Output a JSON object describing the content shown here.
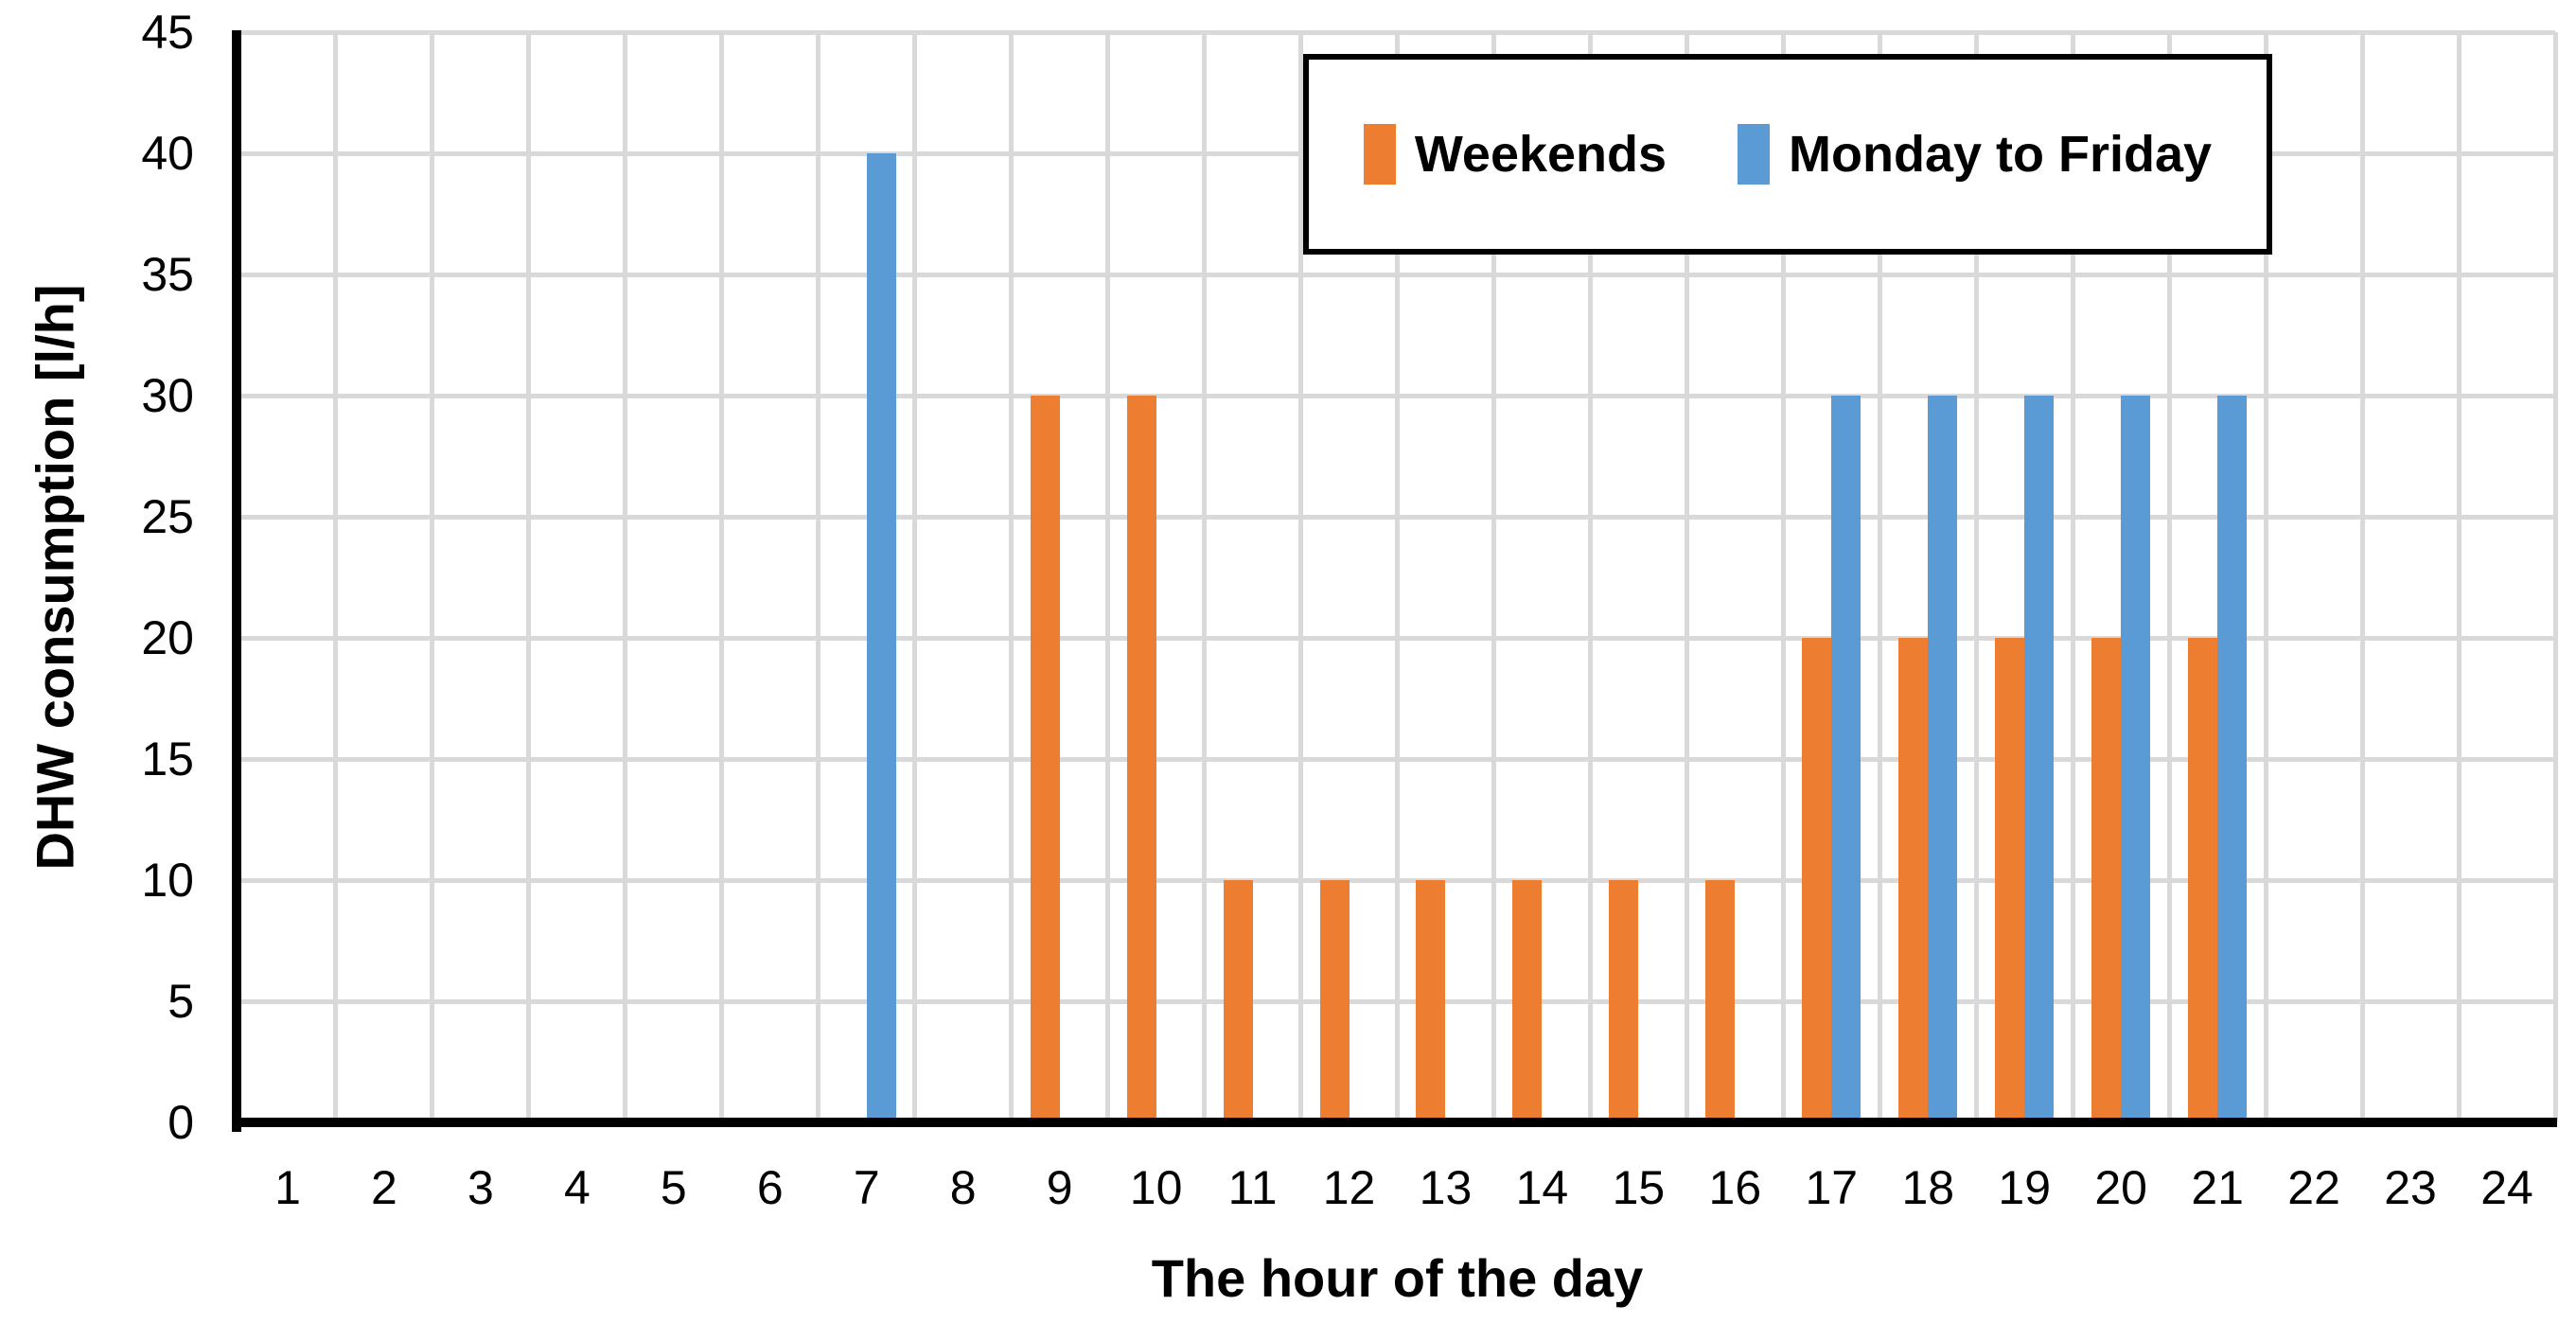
{
  "chart_data": {
    "type": "bar",
    "title": "",
    "xlabel": "The hour of the day",
    "ylabel": "DHW consumption [l/h]",
    "categories": [
      "1",
      "2",
      "3",
      "4",
      "5",
      "6",
      "7",
      "8",
      "9",
      "10",
      "11",
      "12",
      "13",
      "14",
      "15",
      "16",
      "17",
      "18",
      "19",
      "20",
      "21",
      "22",
      "23",
      "24"
    ],
    "series": [
      {
        "name": "Weekends",
        "color": "#ED7D31",
        "values": [
          0,
          0,
          0,
          0,
          0,
          0,
          0,
          0,
          30,
          30,
          10,
          10,
          10,
          10,
          10,
          10,
          20,
          20,
          20,
          20,
          20,
          0,
          0,
          0
        ]
      },
      {
        "name": "Monday to Friday",
        "color": "#5B9BD5",
        "values": [
          0,
          0,
          0,
          0,
          0,
          0,
          40,
          0,
          0,
          0,
          0,
          0,
          0,
          0,
          0,
          0,
          30,
          30,
          30,
          30,
          30,
          0,
          0,
          0
        ]
      }
    ],
    "ylim": [
      0,
      45
    ],
    "y_ticks": [
      0,
      5,
      10,
      15,
      20,
      25,
      30,
      35,
      40,
      45
    ],
    "grid": "both",
    "legend_position": "top-right-inside"
  },
  "colors": {
    "background": "#FFFFFF",
    "gridline": "#D9D9D9",
    "axis": "#000000",
    "legend_border": "#000000",
    "weekends": "#ED7D31",
    "monday_to_friday": "#5B9BD5"
  }
}
